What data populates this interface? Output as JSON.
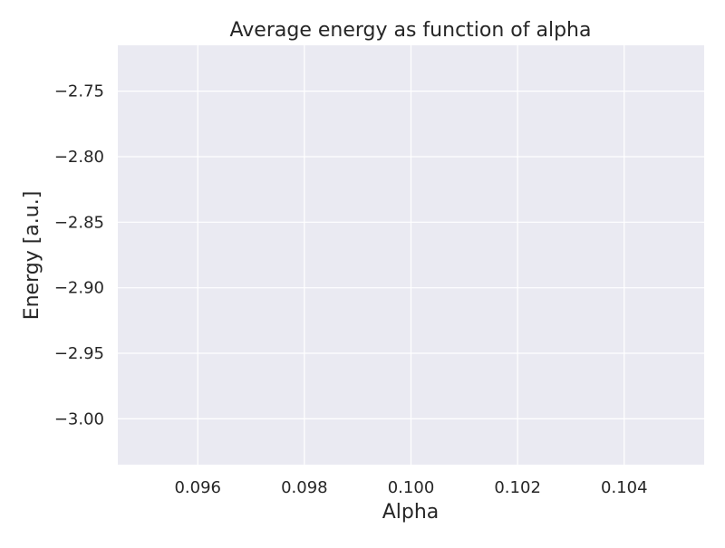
{
  "chart_data": {
    "type": "line",
    "title": "Average energy as function of alpha",
    "xlabel": "Alpha",
    "ylabel": "Energy [a.u.]",
    "xlim": [
      0.0945,
      0.1055
    ],
    "ylim": [
      -3.035,
      -2.715
    ],
    "xticks": [
      0.096,
      0.098,
      0.1,
      0.102,
      0.104
    ],
    "xtick_labels": [
      "0.096",
      "0.098",
      "0.100",
      "0.102",
      "0.104"
    ],
    "yticks": [
      -2.75,
      -2.8,
      -2.85,
      -2.9,
      -2.95,
      -3.0
    ],
    "ytick_labels": [
      "−2.75",
      "−2.80",
      "−2.85",
      "−2.90",
      "−2.95",
      "−3.00"
    ],
    "series": [],
    "grid": true,
    "legend": "none",
    "colors": {
      "plot_background": "#eaeaf2",
      "grid": "#ffffff",
      "text": "#262626",
      "figure_background": "#ffffff"
    }
  }
}
